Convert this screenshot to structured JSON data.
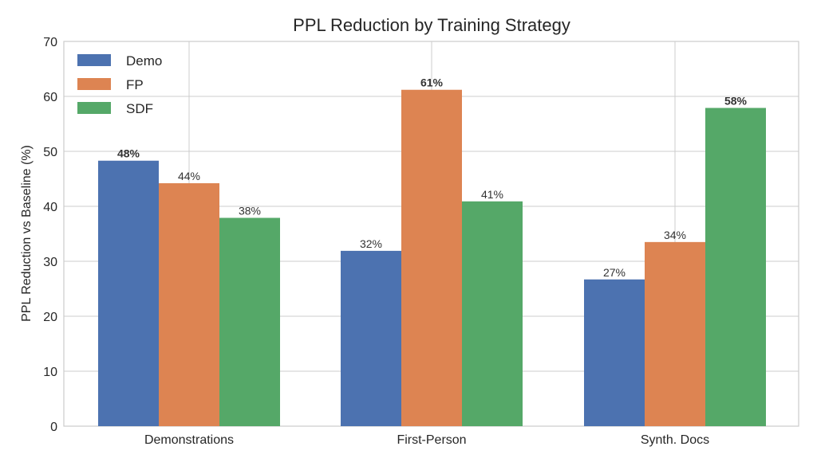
{
  "chart_data": {
    "type": "bar",
    "title": "PPL Reduction by Training Strategy",
    "xlabel": "",
    "ylabel": "PPL Reduction vs Baseline (%)",
    "categories": [
      "Demonstrations",
      "First-Person",
      "Synth. Docs"
    ],
    "series": [
      {
        "name": "Demo",
        "color": "#4c72b0",
        "values": [
          48.3,
          31.9,
          26.7
        ],
        "labels": [
          "48%",
          "32%",
          "27%"
        ]
      },
      {
        "name": "FP",
        "color": "#dd8452",
        "values": [
          44.2,
          61.2,
          33.5
        ],
        "labels": [
          "44%",
          "61%",
          "34%"
        ]
      },
      {
        "name": "SDF",
        "color": "#55a868",
        "values": [
          37.9,
          40.9,
          57.9
        ],
        "labels": [
          "38%",
          "41%",
          "58%"
        ]
      }
    ],
    "bold_labels": [
      {
        "series": 0,
        "category": 0
      },
      {
        "series": 1,
        "category": 1
      },
      {
        "series": 2,
        "category": 2
      }
    ],
    "ylim": [
      0,
      70
    ],
    "yticks": [
      0,
      10,
      20,
      30,
      40,
      50,
      60,
      70
    ],
    "grid": true,
    "legend": "top-left"
  }
}
